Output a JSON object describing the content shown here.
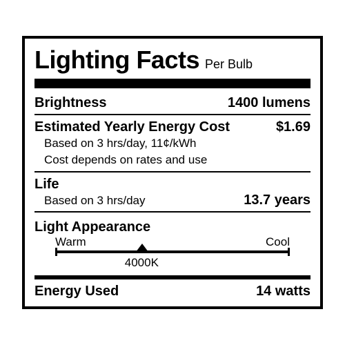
{
  "header": {
    "title": "Lighting Facts",
    "sub": "Per Bulb"
  },
  "brightness": {
    "label": "Brightness",
    "value": "1400 lumens"
  },
  "energy_cost": {
    "label": "Estimated Yearly Energy Cost",
    "value": "$1.69",
    "note1": "Based on 3 hrs/day, 11¢/kWh",
    "note2": "Cost depends on rates and use"
  },
  "life": {
    "label": "Life",
    "note": "Based on 3 hrs/day",
    "value": "13.7 years"
  },
  "appearance": {
    "label": "Light Appearance",
    "warm": "Warm",
    "cool": "Cool",
    "temp": "4000K",
    "pointer_percent": 37
  },
  "energy_used": {
    "label": "Energy Used",
    "value": "14 watts"
  },
  "style": {
    "border_color": "#000000",
    "background": "#ffffff",
    "text_color": "#000000"
  }
}
